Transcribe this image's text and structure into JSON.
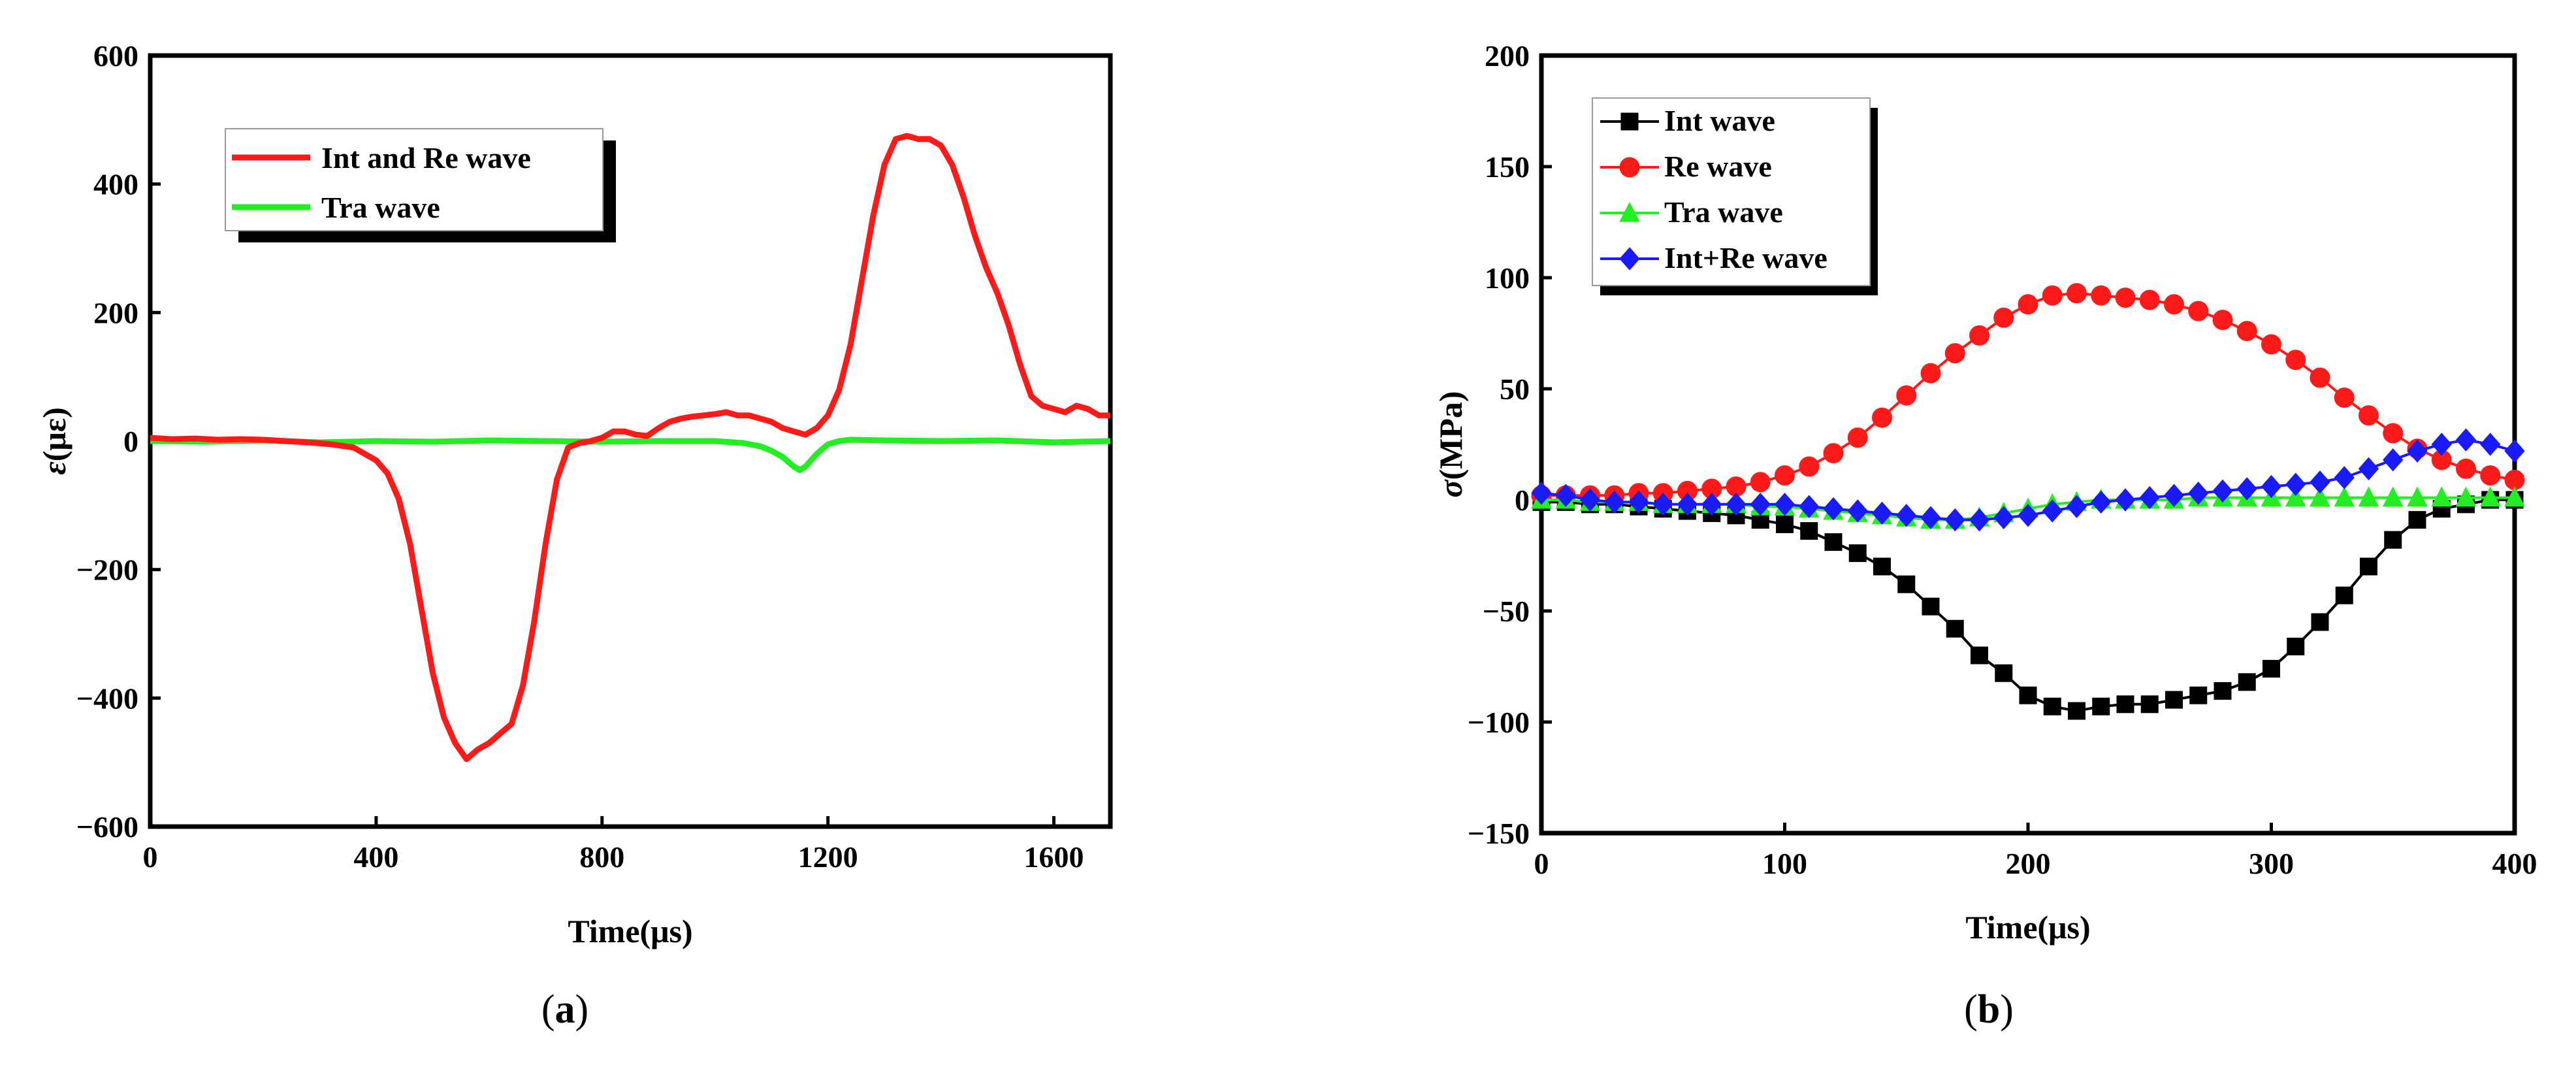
{
  "chart_data": [
    {
      "type": "line",
      "panel_label": "a",
      "xlabel": "Time(μs)",
      "ylabel_symbol": "ε",
      "ylabel_unit": "(με)",
      "xlim": [
        0,
        1700
      ],
      "ylim": [
        -600,
        600
      ],
      "xticks": [
        0,
        400,
        800,
        1200,
        1600
      ],
      "yticks": [
        -600,
        -400,
        -200,
        0,
        200,
        400,
        600
      ],
      "legend_position": "top-left",
      "series": [
        {
          "name": "Int and Re wave",
          "color": "#ff1a1a",
          "x": [
            0,
            40,
            80,
            120,
            160,
            200,
            240,
            280,
            320,
            360,
            380,
            400,
            420,
            440,
            460,
            480,
            500,
            520,
            540,
            560,
            580,
            600,
            620,
            640,
            660,
            680,
            700,
            720,
            740,
            760,
            780,
            800,
            820,
            840,
            860,
            880,
            900,
            920,
            940,
            960,
            980,
            1000,
            1020,
            1040,
            1060,
            1080,
            1100,
            1120,
            1140,
            1160,
            1180,
            1200,
            1220,
            1240,
            1260,
            1280,
            1300,
            1320,
            1340,
            1360,
            1380,
            1400,
            1420,
            1440,
            1460,
            1480,
            1500,
            1520,
            1540,
            1560,
            1580,
            1600,
            1620,
            1640,
            1660,
            1680,
            1700
          ],
          "y": [
            5,
            3,
            4,
            2,
            3,
            2,
            0,
            -2,
            -5,
            -10,
            -20,
            -30,
            -50,
            -90,
            -160,
            -260,
            -360,
            -430,
            -470,
            -495,
            -480,
            -470,
            -455,
            -440,
            -380,
            -280,
            -160,
            -60,
            -10,
            -3,
            0,
            5,
            15,
            15,
            10,
            8,
            20,
            30,
            35,
            38,
            40,
            42,
            45,
            40,
            40,
            35,
            30,
            20,
            15,
            10,
            20,
            40,
            80,
            150,
            250,
            350,
            430,
            470,
            475,
            470,
            470,
            460,
            430,
            380,
            320,
            270,
            230,
            180,
            120,
            70,
            55,
            50,
            45,
            55,
            50,
            40,
            40
          ]
        },
        {
          "name": "Tra wave",
          "color": "#22ee22",
          "x": [
            0,
            100,
            200,
            300,
            400,
            500,
            600,
            700,
            800,
            900,
            1000,
            1050,
            1080,
            1100,
            1120,
            1140,
            1150,
            1160,
            1180,
            1200,
            1220,
            1240,
            1300,
            1400,
            1500,
            1600,
            1700
          ],
          "y": [
            0,
            -1,
            1,
            -2,
            0,
            -1,
            1,
            0,
            -1,
            0,
            0,
            -3,
            -8,
            -15,
            -25,
            -40,
            -45,
            -40,
            -20,
            -5,
            0,
            2,
            1,
            0,
            1,
            -2,
            0
          ]
        }
      ]
    },
    {
      "type": "line",
      "panel_label": "b",
      "xlabel": "Time(μs)",
      "ylabel_symbol": "σ",
      "ylabel_unit": "(MPa)",
      "xlim": [
        0,
        400
      ],
      "ylim": [
        -150,
        200
      ],
      "xticks": [
        0,
        100,
        200,
        300,
        400
      ],
      "yticks": [
        -150,
        -100,
        -50,
        0,
        50,
        100,
        150,
        200
      ],
      "legend_position": "top-left",
      "x": [
        0,
        10,
        20,
        30,
        40,
        50,
        60,
        70,
        80,
        90,
        100,
        110,
        120,
        130,
        140,
        150,
        160,
        170,
        180,
        190,
        200,
        210,
        220,
        230,
        240,
        250,
        260,
        270,
        280,
        290,
        300,
        310,
        320,
        330,
        340,
        350,
        360,
        370,
        380,
        390,
        400
      ],
      "series": [
        {
          "name": "Int  wave",
          "color": "#000000",
          "marker": "square",
          "values": [
            -1,
            -1,
            -2,
            -2,
            -3,
            -4,
            -5,
            -6,
            -7,
            -9,
            -11,
            -14,
            -19,
            -24,
            -30,
            -38,
            -48,
            -58,
            -70,
            -78,
            -88,
            -93,
            -95,
            -93,
            -92,
            -92,
            -90,
            -88,
            -86,
            -82,
            -76,
            -66,
            -55,
            -43,
            -30,
            -18,
            -9,
            -4,
            -2,
            0,
            0
          ]
        },
        {
          "name": "Re wave",
          "color": "#ff1a1a",
          "marker": "circle",
          "values": [
            2,
            2,
            2,
            2,
            3,
            3,
            4,
            5,
            6,
            8,
            11,
            15,
            21,
            28,
            37,
            47,
            57,
            66,
            74,
            82,
            88,
            92,
            93,
            92,
            91,
            90,
            88,
            85,
            81,
            76,
            70,
            63,
            55,
            46,
            38,
            30,
            23,
            18,
            14,
            11,
            9
          ]
        },
        {
          "name": "Tra wave",
          "color": "#22ee22",
          "marker": "triangle",
          "values": [
            0,
            0,
            -1,
            -1,
            -1,
            -2,
            -2,
            -2,
            -2,
            -3,
            -3,
            -4,
            -5,
            -6,
            -7,
            -8,
            -9,
            -9,
            -8,
            -6,
            -4,
            -2,
            -1,
            0,
            0,
            0,
            0,
            1,
            1,
            1,
            1,
            1,
            1,
            1,
            1,
            1,
            1,
            1,
            1,
            1,
            1
          ]
        },
        {
          "name": "Int+Re wave",
          "color": "#1a1aff",
          "marker": "diamond",
          "values": [
            3,
            2,
            0,
            -1,
            -1,
            -2,
            -2,
            -2,
            -2,
            -2,
            -2,
            -3,
            -4,
            -5,
            -6,
            -7,
            -8,
            -9,
            -9,
            -8,
            -7,
            -5,
            -3,
            -1,
            0,
            1,
            2,
            3,
            4,
            5,
            6,
            7,
            8,
            10,
            14,
            18,
            22,
            25,
            27,
            25,
            22
          ]
        }
      ]
    }
  ]
}
